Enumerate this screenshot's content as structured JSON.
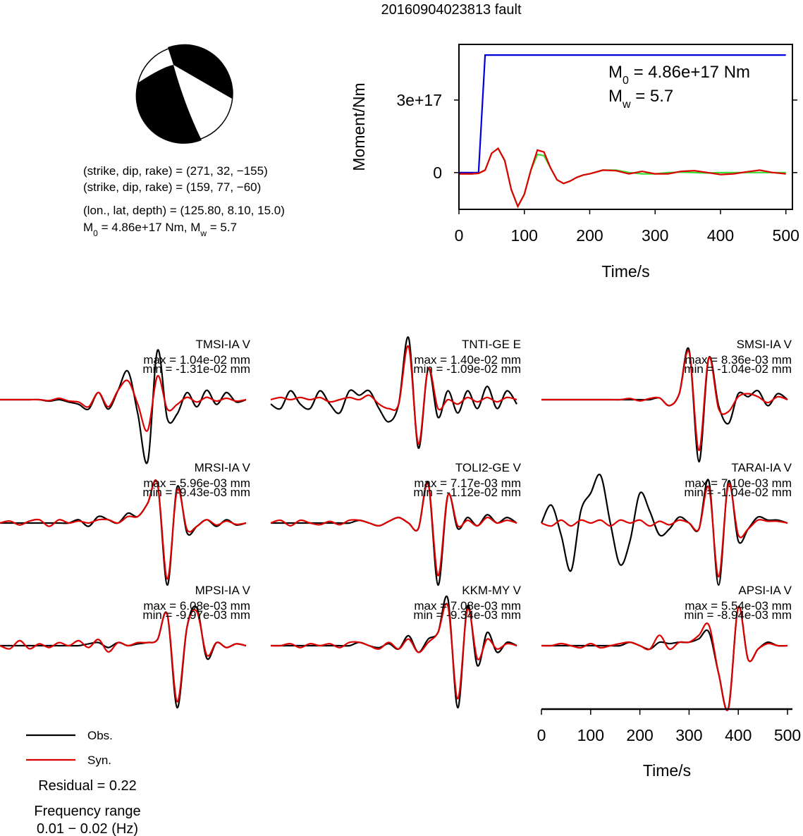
{
  "title": "20160904023813 fault",
  "focal": {
    "lines": [
      "(strike, dip, rake) = (271, 32, −155)",
      "(strike, dip, rake) = (159, 77, −60)",
      "(lon., lat, depth) = (125.80, 8.10, 15.0)"
    ],
    "moment": {
      "parts": [
        "M",
        "0",
        " = 4.86e+17 Nm, M",
        "w",
        " = 5.7"
      ]
    }
  },
  "chart_data": [
    {
      "type": "line",
      "xlabel": "Time/s",
      "ylabel": "Moment/Nm",
      "xlim": [
        0,
        510
      ],
      "ylim": [
        -1.52e+17,
        5.3e+17
      ],
      "xticks": [
        0,
        100,
        200,
        300,
        400,
        500
      ],
      "yticks": [
        0,
        {
          "value": 3e+17,
          "label": "3e+17"
        }
      ],
      "annotations": [
        {
          "parts": [
            "M",
            "0",
            " = 4.86e+17 Nm"
          ]
        },
        {
          "parts": [
            "M",
            "w",
            " = 5.7"
          ]
        }
      ],
      "x": [
        0,
        10,
        20,
        30,
        40,
        50,
        60,
        70,
        80,
        90,
        100,
        110,
        120,
        130,
        140,
        150,
        160,
        170,
        180,
        190,
        200,
        220,
        240,
        260,
        280,
        300,
        320,
        340,
        360,
        380,
        400,
        420,
        440,
        460,
        480,
        500
      ],
      "series": [
        {
          "color": "#0000dd",
          "values": [
            0,
            0,
            0,
            0,
            4.86e+17,
            4.86e+17,
            4.86e+17,
            4.86e+17,
            4.86e+17,
            4.86e+17,
            4.86e+17,
            4.86e+17,
            4.86e+17,
            4.86e+17,
            4.86e+17,
            4.86e+17,
            4.86e+17,
            4.86e+17,
            4.86e+17,
            4.86e+17,
            4.86e+17,
            4.86e+17,
            4.86e+17,
            4.86e+17,
            4.86e+17,
            4.86e+17,
            4.86e+17,
            4.86e+17,
            4.86e+17,
            4.86e+17,
            4.86e+17,
            4.86e+17,
            4.86e+17,
            4.86e+17,
            4.86e+17,
            4.86e+17
          ]
        },
        {
          "color": "#33dd33",
          "values": [
            -5000000000000000.0,
            -5000000000000000.0,
            -5000000000000000.0,
            -3000000000000000.0,
            1e+16,
            8e+16,
            1e+17,
            5e+16,
            -7e+16,
            -1.4e+17,
            -9e+16,
            1e+16,
            7.5e+16,
            7e+16,
            2e+16,
            -3e+16,
            -4.5e+16,
            -3.5e+16,
            -2e+16,
            -1e+16,
            -5000000000000000.0,
            1e+16,
            1e+16,
            0,
            -5000000000000000.0,
            -5000000000000000.0,
            0,
            2000000000000000.0,
            0,
            -2000000000000000.0,
            0,
            0,
            0,
            0,
            0,
            0
          ]
        },
        {
          "color": "#dd0000",
          "values": [
            -5000000000000000.0,
            -5000000000000000.0,
            -5000000000000000.0,
            -3000000000000000.0,
            1e+16,
            8e+16,
            1e+17,
            5e+16,
            -7e+16,
            -1.4e+17,
            -9e+16,
            1e+16,
            9.3e+16,
            8.5e+16,
            2e+16,
            -3e+16,
            -4.5e+16,
            -3.5e+16,
            -2e+16,
            -1e+16,
            -5000000000000000.0,
            1e+16,
            8000000000000000.0,
            -5000000000000000.0,
            5000000000000000.0,
            -5000000000000000.0,
            -5000000000000000.0,
            5000000000000000.0,
            8000000000000000.0,
            0,
            -8000000000000000.0,
            -5000000000000000.0,
            3000000000000000.0,
            1e+16,
            0,
            -5000000000000000.0
          ]
        }
      ]
    },
    {
      "type": "waveform",
      "xlabel": "Time/s",
      "xlim": [
        0,
        510
      ],
      "xticks": [
        0,
        100,
        200,
        300,
        400,
        500
      ],
      "x": [
        0,
        20,
        40,
        60,
        80,
        100,
        120,
        140,
        160,
        180,
        200,
        220,
        240,
        260,
        280,
        300,
        320,
        340,
        360,
        380,
        400,
        420,
        440,
        460,
        480,
        500
      ],
      "series": [
        {
          "name": "Obs.",
          "color": "#000000"
        },
        {
          "name": "Syn.",
          "color": "#dd0000"
        }
      ],
      "panels": [
        {
          "station": "TMSI-IA V",
          "max_label": "max = 1.04e-02 mm",
          "min_label": "min = -1.31e-02 mm",
          "ylim": [
            -0.0131,
            0.0131
          ],
          "obs": [
            0,
            0,
            0,
            0,
            0,
            -0.0003,
            0,
            -0.0005,
            -0.001,
            -0.002,
            0.0015,
            -0.002,
            0.002,
            0.006,
            -0.003,
            -0.0131,
            0.0104,
            -0.004,
            -0.003,
            0.0015,
            -0.0015,
            0.002,
            -0.001,
            0.0015,
            -0.0005,
            0
          ],
          "syn": [
            0,
            0,
            0,
            0,
            0,
            -0.0002,
            0.0003,
            -0.0003,
            -0.0005,
            -0.0015,
            0.0015,
            -0.0015,
            0.002,
            0.004,
            -0.001,
            -0.0065,
            0.005,
            -0.002,
            -0.001,
            0.0005,
            -0.0005,
            0.0005,
            -0.0003,
            0.0003,
            -0.0003,
            0
          ]
        },
        {
          "station": "TNTI-GE E",
          "max_label": "max = 1.40e-02 mm",
          "min_label": "min = -1.09e-02 mm",
          "ylim": [
            -0.014,
            0.014
          ],
          "obs": [
            -0.001,
            -0.002,
            0.002,
            -0.001,
            -0.002,
            0.002,
            -0.001,
            -0.003,
            0.002,
            0.001,
            0.002,
            -0.002,
            -0.005,
            -0.001,
            0.014,
            -0.0109,
            0.007,
            -0.004,
            0.002,
            -0.003,
            0.002,
            -0.002,
            0.003,
            -0.002,
            0.002,
            -0.001
          ],
          "syn": [
            0,
            0.0005,
            0,
            0.0005,
            0,
            0.0005,
            -0.0005,
            0,
            0.0005,
            0,
            0.001,
            -0.001,
            -0.002,
            -0.001,
            0.012,
            -0.01,
            0.007,
            -0.002,
            0,
            -0.001,
            0.0005,
            -0.0005,
            0.0005,
            -0.0005,
            0.0005,
            0
          ]
        },
        {
          "station": "SMSI-IA V",
          "max_label": "max = 8.36e-03 mm",
          "min_label": "min = -1.04e-02 mm",
          "ylim": [
            -0.0104,
            0.0104
          ],
          "obs": [
            0,
            0,
            0,
            0,
            0,
            0,
            0,
            0,
            0,
            0,
            0,
            0,
            0.0003,
            -0.001,
            0.001,
            0.00836,
            -0.0104,
            0.007,
            -0.001,
            -0.004,
            0.001,
            0.0005,
            0.0015,
            -0.001,
            0.001,
            0
          ],
          "syn": [
            0,
            0,
            0,
            0,
            0,
            0,
            0,
            0,
            0,
            0.0002,
            -0.0002,
            0.0002,
            0.0003,
            -0.001,
            0.001,
            0.008,
            -0.0085,
            0.007,
            -0.0015,
            -0.002,
            0.0005,
            0.001,
            0.0005,
            -0.0005,
            0.0005,
            0
          ]
        },
        {
          "station": "MRSI-IA V",
          "max_label": "max = 5.96e-03 mm",
          "min_label": "min = -9.43e-03 mm",
          "ylim": [
            -0.00943,
            0.00943
          ],
          "obs": [
            0,
            0,
            0,
            0,
            0,
            0,
            0,
            0,
            0.0005,
            -0.0005,
            0.001,
            0.0005,
            0,
            0.0015,
            0.001,
            0.003,
            0.00596,
            -0.00943,
            0.0055,
            -0.0015,
            -0.0005,
            0.0005,
            -0.0005,
            0.0005,
            -0.0003,
            0
          ],
          "syn": [
            0,
            0.0003,
            -0.0003,
            0.0003,
            0.0005,
            -0.0005,
            0.0005,
            0,
            0.0003,
            0,
            0.0005,
            0.0005,
            0,
            0.001,
            0.001,
            0.003,
            0.006,
            -0.0085,
            0.005,
            -0.001,
            -0.0005,
            0.0005,
            -0.0003,
            0.0003,
            -0.0002,
            0
          ]
        },
        {
          "station": "TOLI2-GE V",
          "max_label": "max = 7.17e-03 mm",
          "min_label": "min = -1.12e-02 mm",
          "ylim": [
            -0.0112,
            0.0112
          ],
          "obs": [
            0,
            0,
            0,
            0,
            0,
            0,
            0,
            0,
            0,
            0.0005,
            0,
            -0.0005,
            0.0003,
            0.001,
            0,
            -0.001,
            0.00717,
            -0.0112,
            0.005,
            -0.001,
            0.001,
            -0.0005,
            0.0015,
            0,
            0.001,
            0
          ],
          "syn": [
            0,
            0.0005,
            -0.0005,
            0.0005,
            0,
            -0.0003,
            0.0003,
            -0.0003,
            0.0005,
            0.0005,
            0,
            -0.0005,
            0.0003,
            0.001,
            0,
            -0.001,
            0.007,
            -0.0095,
            0.005,
            -0.0005,
            0.0005,
            -0.0005,
            0.001,
            0,
            0.0005,
            0
          ]
        },
        {
          "station": "TARAI-IA V",
          "max_label": "max = 7.10e-03 mm",
          "min_label": "min = -1.04e-02 mm",
          "ylim": [
            -0.0104,
            0.0104
          ],
          "obs": [
            0,
            0.003,
            -0.002,
            -0.008,
            0.002,
            0.005,
            0.008,
            0,
            -0.007,
            -0.003,
            0.005,
            0.002,
            -0.002,
            -0.001,
            0.001,
            0,
            -0.001,
            0.0071,
            -0.0104,
            0.007,
            -0.003,
            -0.001,
            0.001,
            0.0005,
            0.0005,
            0
          ],
          "syn": [
            0,
            -0.0005,
            0.0005,
            -0.0005,
            0.0005,
            0,
            0.0005,
            -0.0005,
            0.0005,
            0,
            0.0005,
            -0.0005,
            0.0003,
            -0.0003,
            0.0005,
            0,
            -0.001,
            0.006,
            -0.009,
            0.0065,
            -0.002,
            -0.001,
            0.0005,
            0.0003,
            0.0003,
            0
          ]
        },
        {
          "station": "MPSI-IA V",
          "max_label": "max = 6.08e-03 mm",
          "min_label": "min = -9.97e-03 mm",
          "ylim": [
            -0.00997,
            0.00997
          ],
          "obs": [
            0,
            0,
            0,
            0,
            0,
            0,
            0,
            0,
            0,
            0.0003,
            0.0005,
            -0.0003,
            0.0005,
            0,
            0.0003,
            0.0005,
            0.001,
            0.005,
            -0.00997,
            0.003,
            0.00608,
            -0.002,
            0.0005,
            -0.0003,
            0.0003,
            0
          ],
          "syn": [
            0,
            -0.0005,
            0.0008,
            -0.0005,
            0.0003,
            -0.0003,
            0.0005,
            0,
            0.0008,
            -0.0003,
            0.001,
            -0.001,
            0.0005,
            0,
            0.0005,
            0.0005,
            0.001,
            0.005,
            -0.009,
            0.003,
            0.0055,
            -0.0015,
            0.0005,
            -0.0003,
            0.0003,
            0
          ]
        },
        {
          "station": "KKM-MY V",
          "max_label": "max = 7.08e-03 mm",
          "min_label": "min = -9.34e-03 mm",
          "ylim": [
            -0.00934,
            0.00934
          ],
          "obs": [
            0,
            0,
            0,
            0,
            0,
            0,
            0,
            0,
            0,
            0.0005,
            0,
            -0.0003,
            0.0003,
            -0.0005,
            0.0015,
            -0.001,
            0.001,
            0.002,
            0.00708,
            -0.00934,
            0.006,
            -0.003,
            0.002,
            -0.001,
            0.0005,
            0
          ],
          "syn": [
            0,
            0,
            0.0003,
            -0.0003,
            0.0003,
            0,
            0.0003,
            -0.0003,
            0.0005,
            0.0005,
            0,
            -0.0005,
            0.0005,
            -0.0005,
            0.001,
            -0.001,
            0.0005,
            0.002,
            0.006,
            -0.008,
            0.0055,
            -0.002,
            0.001,
            -0.0005,
            0.0003,
            0
          ]
        },
        {
          "station": "APSI-IA V",
          "max_label": "max = 5.54e-03 mm",
          "min_label": "min = -8.94e-03 mm",
          "ylim": [
            -0.00894,
            0.00894
          ],
          "obs": [
            0,
            0,
            0,
            0,
            0,
            0,
            0,
            0,
            0,
            0.0005,
            0,
            -0.0005,
            0.0005,
            0.0003,
            0.0005,
            0.0005,
            0.001,
            0.002,
            -0.004,
            -0.00894,
            0.00554,
            -0.002,
            -0.0005,
            0.0005,
            0,
            0
          ],
          "syn": [
            0,
            0,
            0.0003,
            0,
            -0.0003,
            0.0003,
            -0.0003,
            0,
            0.0003,
            0.0005,
            0,
            -0.0005,
            0.0015,
            -0.0005,
            0.0005,
            0.0005,
            0.0015,
            0.003,
            -0.004,
            -0.009,
            0.0055,
            -0.002,
            -0.0005,
            0.0003,
            0,
            0
          ]
        }
      ]
    }
  ],
  "footer": {
    "residual": "Residual = 0.22",
    "frequency_title": "Frequency range",
    "frequency_range": "0.01 − 0.02 (Hz)"
  }
}
